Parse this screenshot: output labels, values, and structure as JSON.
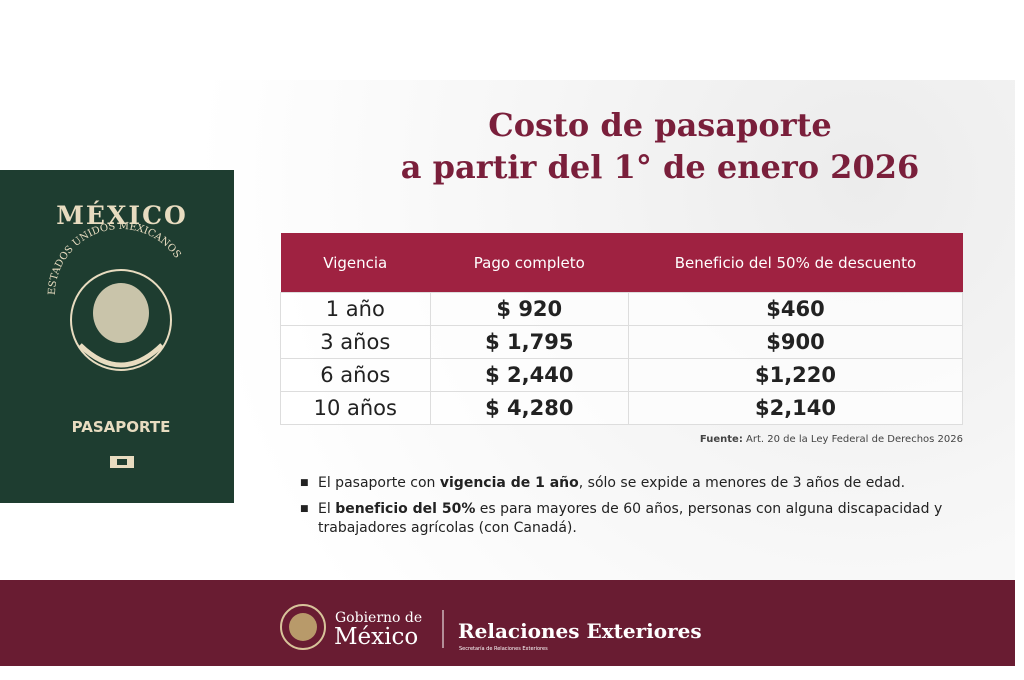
{
  "title": {
    "line1": "Costo de pasaporte",
    "line2": "a partir del 1° de enero 2026"
  },
  "passport": {
    "country": "MÉXICO",
    "seal": "ESTADOS UNIDOS MEXICANOS",
    "label": "PASAPORTE"
  },
  "table": {
    "header": [
      "Vigencia",
      "Pago completo",
      "Beneficio del 50% de descuento"
    ],
    "rows": [
      [
        "1 año",
        "$ 920",
        "$460"
      ],
      [
        "3 años",
        "$ 1,795",
        "$900"
      ],
      [
        "6 años",
        "$ 2,440",
        "$1,220"
      ],
      [
        "10 años",
        "$ 4,280",
        "$2,140"
      ]
    ]
  },
  "source": {
    "label": "Fuente:",
    "text": "Art. 20 de la Ley Federal de Derechos 2026"
  },
  "notes": [
    [
      "El pasaporte con ",
      "vigencia de 1 año",
      ", sólo se expide a menores de 3 años de edad."
    ],
    [
      "El ",
      "beneficio del 50%",
      " es para mayores de 60 años, personas con alguna discapacidad y trabajadores agrícolas (con Canadá)."
    ]
  ],
  "footer": {
    "gov_line1": "Gobierno de",
    "gov_line2": "México",
    "ministry": "Relaciones Exteriores",
    "ministry_sub": "Secretaría de Relaciones Exteriores"
  }
}
